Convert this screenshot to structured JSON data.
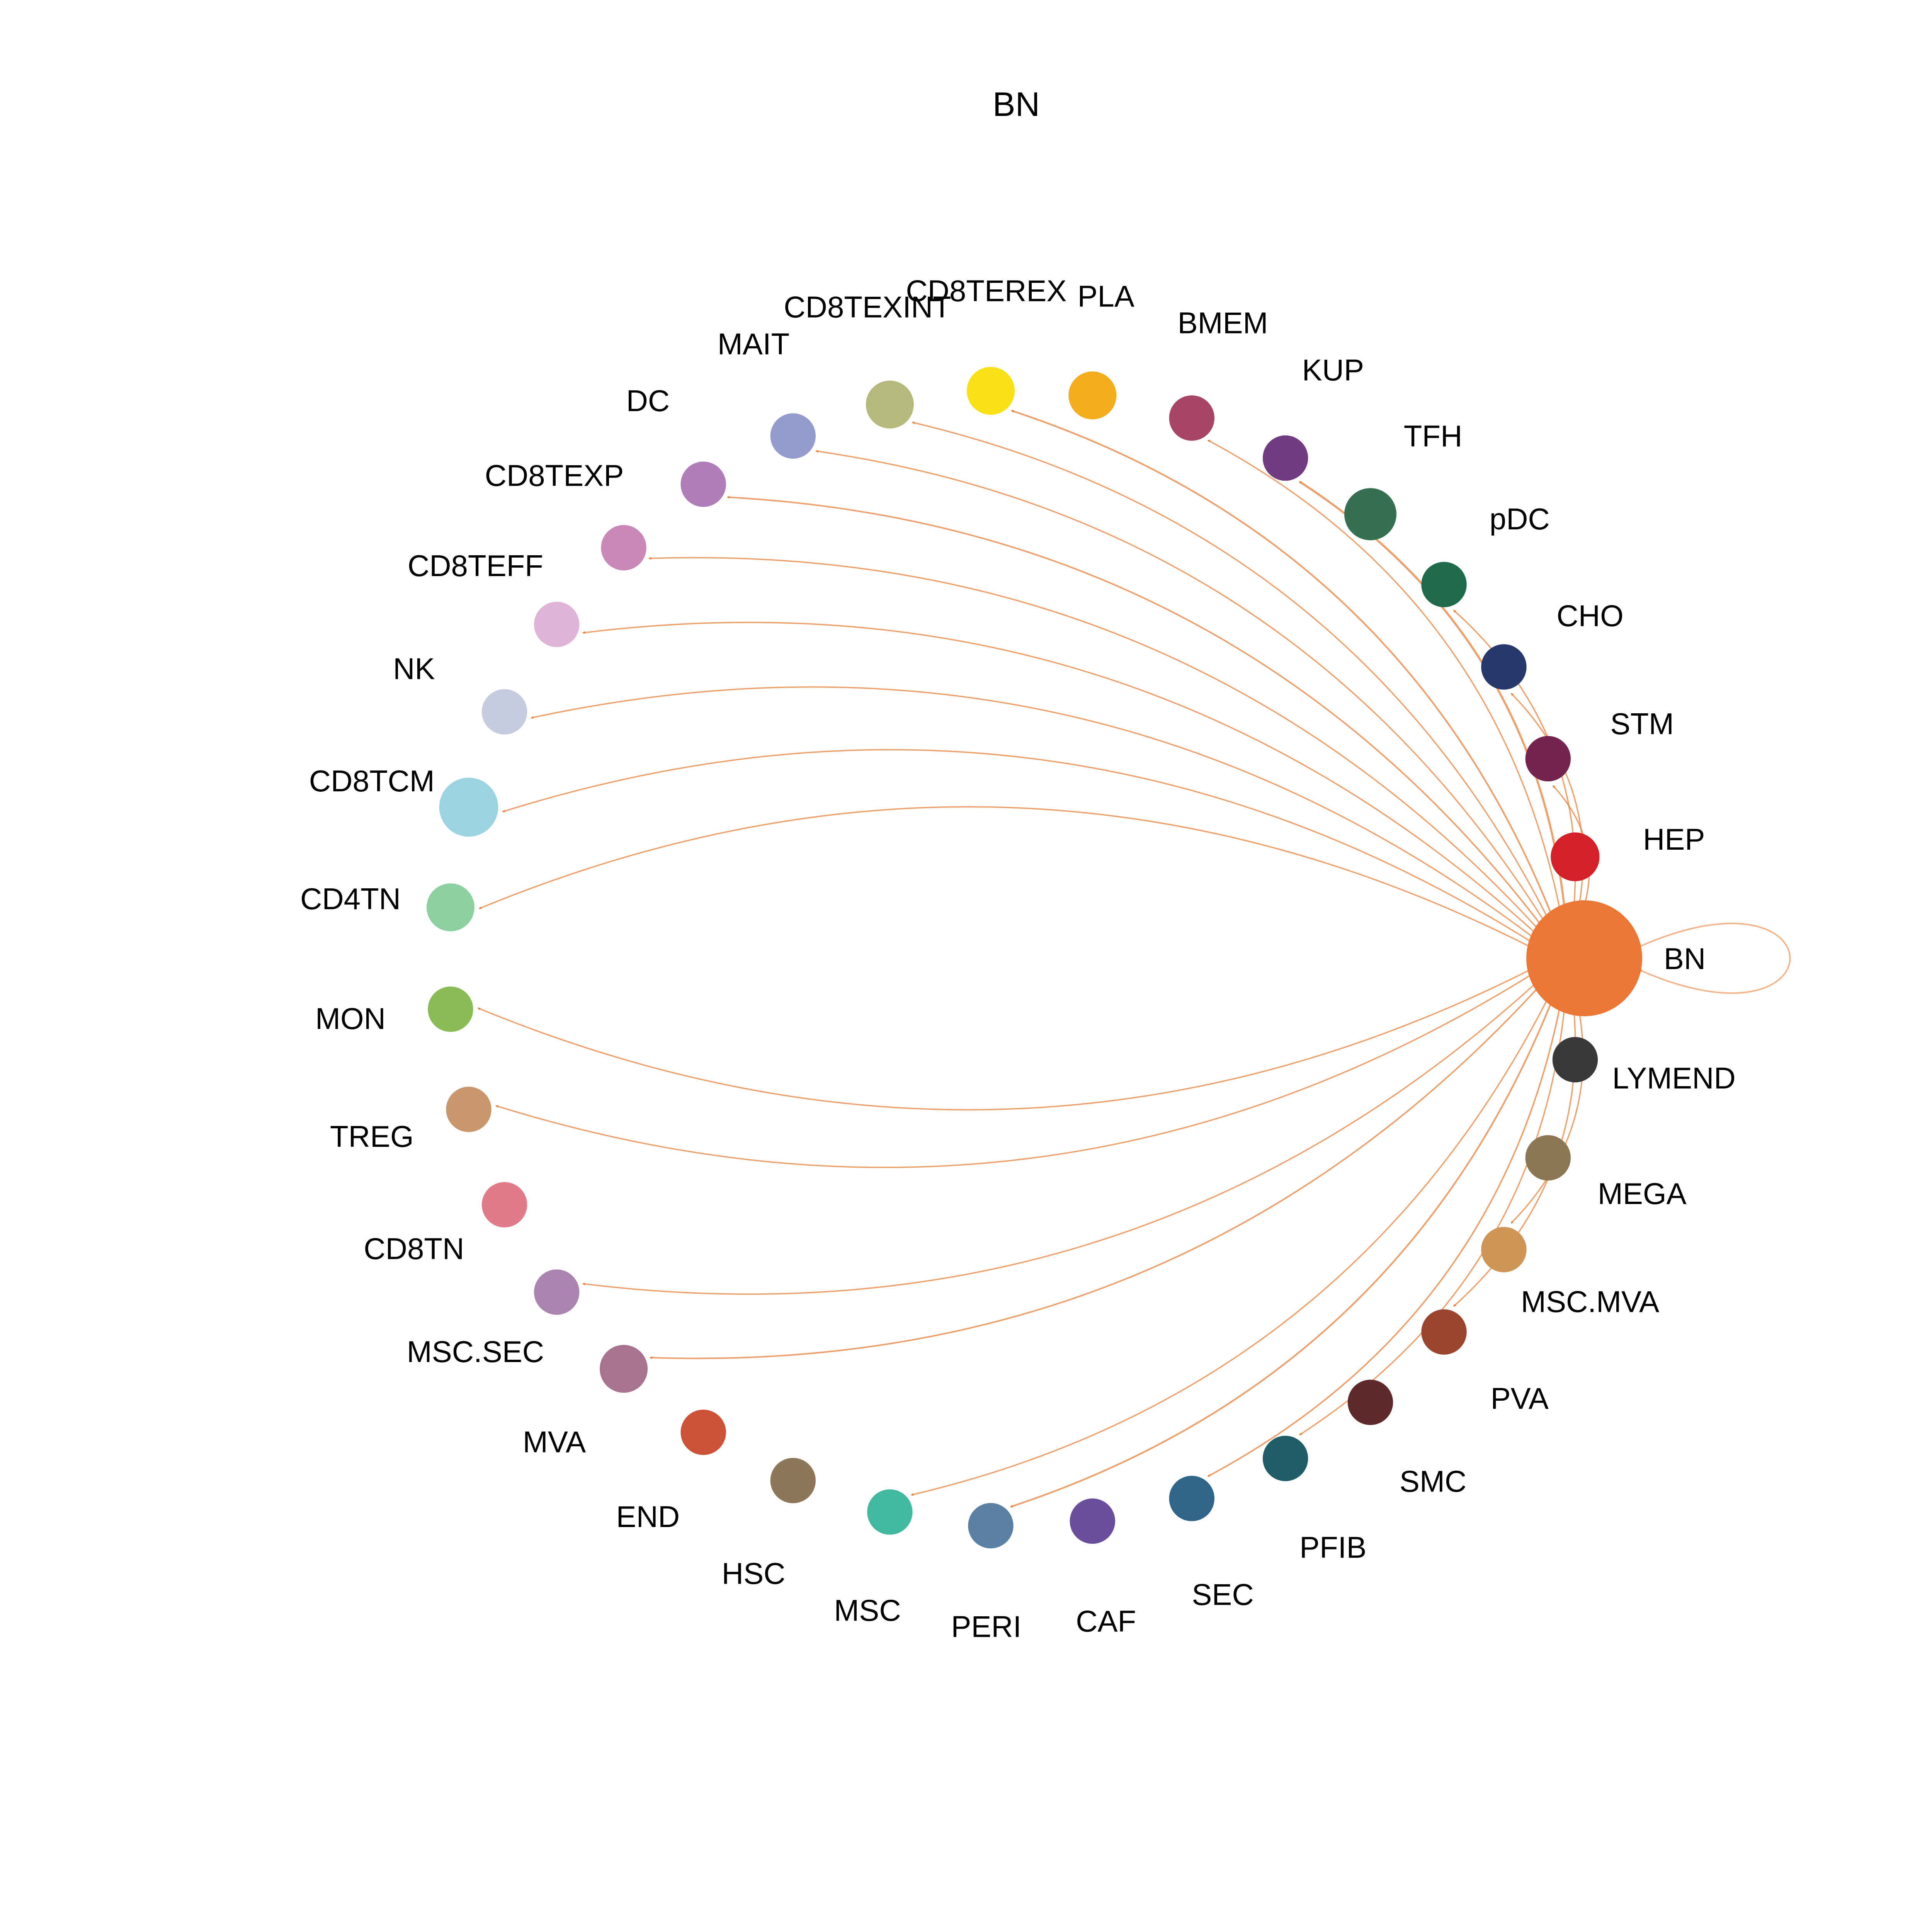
{
  "title": "BN",
  "source": "BN",
  "colors": {
    "edge": "#e8803b"
  },
  "nodes": [
    {
      "name": "BN",
      "color": "#EC7734",
      "size": 1.0,
      "edge_weight": 0.6
    },
    {
      "name": "LYMEND",
      "color": "#3A3A3A",
      "size": 0.17,
      "edge_weight": 0
    },
    {
      "name": "MEGA",
      "color": "#8D7653",
      "size": 0.17,
      "edge_weight": 0
    },
    {
      "name": "MSC.MVA",
      "color": "#CD9656",
      "size": 0.17,
      "edge_weight": 0.5
    },
    {
      "name": "PVA",
      "color": "#9B4531",
      "size": 0.17,
      "edge_weight": 0.5
    },
    {
      "name": "SMC",
      "color": "#612A2A",
      "size": 0.17,
      "edge_weight": 0
    },
    {
      "name": "PFIB",
      "color": "#1F5E66",
      "size": 0.17,
      "edge_weight": 0.5
    },
    {
      "name": "SEC",
      "color": "#2E6589",
      "size": 0.17,
      "edge_weight": 0.6
    },
    {
      "name": "CAF",
      "color": "#6A4D9C",
      "size": 0.17,
      "edge_weight": 0
    },
    {
      "name": "PERI",
      "color": "#5A80A4",
      "size": 0.17,
      "edge_weight": 0.7
    },
    {
      "name": "MSC",
      "color": "#43B8A0",
      "size": 0.17,
      "edge_weight": 0.5
    },
    {
      "name": "HSC",
      "color": "#8E7659",
      "size": 0.17,
      "edge_weight": 0
    },
    {
      "name": "END",
      "color": "#CD5137",
      "size": 0.17,
      "edge_weight": 0
    },
    {
      "name": "MVA",
      "color": "#A77390",
      "size": 0.2,
      "edge_weight": 0.6
    },
    {
      "name": "MSC.SEC",
      "color": "#AC84B1",
      "size": 0.17,
      "edge_weight": 0.5
    },
    {
      "name": "CD8TN",
      "color": "#E17B87",
      "size": 0.17,
      "edge_weight": 0
    },
    {
      "name": "TREG",
      "color": "#C8976C",
      "size": 0.17,
      "edge_weight": 0.5
    },
    {
      "name": "MON",
      "color": "#8ABB55",
      "size": 0.17,
      "edge_weight": 0.5
    },
    {
      "name": "CD4TN",
      "color": "#8CCFA0",
      "size": 0.2,
      "edge_weight": 0.5
    },
    {
      "name": "CD8TCM",
      "color": "#9AD3E1",
      "size": 0.33,
      "edge_weight": 0.5
    },
    {
      "name": "NK",
      "color": "#C6CBE0",
      "size": 0.17,
      "edge_weight": 0.5
    },
    {
      "name": "CD8TEFF",
      "color": "#E0B4D6",
      "size": 0.17,
      "edge_weight": 0.5
    },
    {
      "name": "CD8TEXP",
      "color": "#C889B8",
      "size": 0.17,
      "edge_weight": 0.5
    },
    {
      "name": "DC",
      "color": "#AE7DBA",
      "size": 0.17,
      "edge_weight": 0.6
    },
    {
      "name": "MAIT",
      "color": "#939CCF",
      "size": 0.17,
      "edge_weight": 0.5
    },
    {
      "name": "CD8TEXINT",
      "color": "#B5B97B",
      "size": 0.2,
      "edge_weight": 0.5
    },
    {
      "name": "CD8TEREX",
      "color": "#F7E114",
      "size": 0.2,
      "edge_weight": 0.7
    },
    {
      "name": "PLA",
      "color": "#F6AC1F",
      "size": 0.2,
      "edge_weight": 0
    },
    {
      "name": "BMEM",
      "color": "#A64566",
      "size": 0.17,
      "edge_weight": 0.5
    },
    {
      "name": "KUP",
      "color": "#733B82",
      "size": 0.17,
      "edge_weight": 1.0
    },
    {
      "name": "TFH",
      "color": "#357050",
      "size": 0.25,
      "edge_weight": 0
    },
    {
      "name": "pDC",
      "color": "#1E6A4B",
      "size": 0.17,
      "edge_weight": 0.5
    },
    {
      "name": "CHO",
      "color": "#28386A",
      "size": 0.17,
      "edge_weight": 0.5
    },
    {
      "name": "STM",
      "color": "#74244F",
      "size": 0.17,
      "edge_weight": 0.5
    },
    {
      "name": "HEP",
      "color": "#D42027",
      "size": 0.21,
      "edge_weight": 0
    }
  ]
}
